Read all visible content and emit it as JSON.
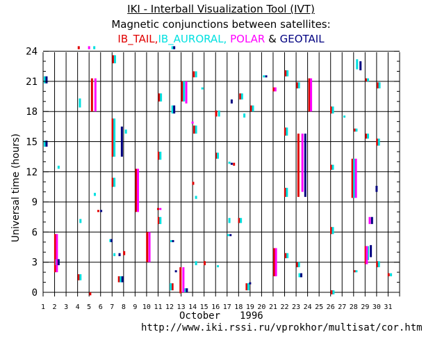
{
  "header": {
    "title": "IKI - Interball Visualization Tool (IVT)",
    "subtitle": "Magnetic conjunctions between satellites:",
    "legend": {
      "ib_tail": "IB_TAIL,",
      "ib_auroral": "IB_AURORAL,",
      "polar": "POLAR",
      "amp": "&",
      "geotail": "GEOTAIL"
    }
  },
  "footer": {
    "month": "October",
    "year": "1996",
    "url": "http://www.iki.rssi.ru/vprokhor/multisat/cor.htm"
  },
  "colors": {
    "IB_TAIL": "#e00000",
    "IB_AURORAL": "#00e0e0",
    "POLAR": "#ff00ff",
    "GEOTAIL": "#000080"
  },
  "chart_data": {
    "type": "scatter",
    "ylabel": "Universal time (hours)",
    "xlabel": "October 1996",
    "xlim": [
      1,
      32
    ],
    "ylim": [
      0,
      24
    ],
    "xticks": [
      "1",
      "2",
      "3",
      "4",
      "5",
      "6",
      "7",
      "8",
      "9",
      "10",
      "11",
      "12",
      "13",
      "14",
      "15",
      "16",
      "17",
      "18",
      "19",
      "20",
      "21",
      "22",
      "23",
      "24",
      "25",
      "26",
      "27",
      "28",
      "29",
      "30",
      "31"
    ],
    "yticks": [
      "0",
      "3",
      "6",
      "9",
      "12",
      "15",
      "18",
      "21",
      "24"
    ],
    "grid": true,
    "series": [
      {
        "name": "IB_TAIL",
        "intervals": [
          {
            "x": 2.05,
            "y0": 2.0,
            "y1": 5.8
          },
          {
            "x": 4.1,
            "y0": 24.2,
            "y1": 24.5
          },
          {
            "x": 4.1,
            "y0": 1.2,
            "y1": 1.8
          },
          {
            "x": 5.25,
            "y0": 18.0,
            "y1": 21.3
          },
          {
            "x": 5.1,
            "y0": -0.3,
            "y1": 0
          },
          {
            "x": 5.8,
            "y0": 8.0,
            "y1": 8.2
          },
          {
            "x": 7.05,
            "y0": 13.5,
            "y1": 17.3
          },
          {
            "x": 7.05,
            "y0": 10.5,
            "y1": 11.4
          },
          {
            "x": 7.1,
            "y0": 22.8,
            "y1": 23.6
          },
          {
            "x": 7.6,
            "y0": 1.0,
            "y1": 1.6
          },
          {
            "x": 8.05,
            "y0": 3.7,
            "y1": 4.1
          },
          {
            "x": 9.1,
            "y0": 8.0,
            "y1": 12.3
          },
          {
            "x": 10.05,
            "y0": 3.0,
            "y1": 6.0
          },
          {
            "x": 11.05,
            "y0": 6.8,
            "y1": 7.5
          },
          {
            "x": 11.05,
            "y0": 13.2,
            "y1": 14.0
          },
          {
            "x": 11.1,
            "y0": 19.0,
            "y1": 19.8
          },
          {
            "x": 11.0,
            "y0": 8.2,
            "y1": 8.4
          },
          {
            "x": 12.25,
            "y0": 0.2,
            "y1": 0.9
          },
          {
            "x": 12.95,
            "y0": -0.1,
            "y1": 2.5
          },
          {
            "x": 13.1,
            "y0": 19.0,
            "y1": 21.0
          },
          {
            "x": 14.15,
            "y0": 15.8,
            "y1": 16.6
          },
          {
            "x": 14.1,
            "y0": 21.4,
            "y1": 22.0
          },
          {
            "x": 14.05,
            "y0": 10.7,
            "y1": 11.0
          },
          {
            "x": 15.05,
            "y0": 2.7,
            "y1": 3.1
          },
          {
            "x": 16.05,
            "y0": 17.5,
            "y1": 18.1
          },
          {
            "x": 16.1,
            "y0": 13.3,
            "y1": 13.9
          },
          {
            "x": 17.6,
            "y0": 12.6,
            "y1": 12.9
          },
          {
            "x": 18.05,
            "y0": 6.9,
            "y1": 7.4
          },
          {
            "x": 18.15,
            "y0": 19.2,
            "y1": 19.8
          },
          {
            "x": 18.7,
            "y0": 0.2,
            "y1": 0.9
          },
          {
            "x": 19.1,
            "y0": 18.0,
            "y1": 18.6
          },
          {
            "x": 21.05,
            "y0": 20.0,
            "y1": 20.4
          },
          {
            "x": 21.1,
            "y0": 1.6,
            "y1": 4.4
          },
          {
            "x": 22.05,
            "y0": 9.5,
            "y1": 10.4
          },
          {
            "x": 22.05,
            "y0": 15.6,
            "y1": 16.4
          },
          {
            "x": 22.1,
            "y0": 3.4,
            "y1": 3.9
          },
          {
            "x": 22.1,
            "y0": 21.5,
            "y1": 22.1
          },
          {
            "x": 23.2,
            "y0": 9.5,
            "y1": 15.8
          },
          {
            "x": 23.1,
            "y0": 2.5,
            "y1": 3.0
          },
          {
            "x": 23.1,
            "y0": 20.3,
            "y1": 20.9
          },
          {
            "x": 24.15,
            "y0": 18.0,
            "y1": 21.3
          },
          {
            "x": 26.05,
            "y0": 5.8,
            "y1": 6.5
          },
          {
            "x": 26.05,
            "y0": 12.2,
            "y1": 12.7
          },
          {
            "x": 26.05,
            "y0": 17.8,
            "y1": 18.5
          },
          {
            "x": 26.1,
            "y0": -0.2,
            "y1": 0.2
          },
          {
            "x": 27.9,
            "y0": 9.4,
            "y1": 13.3
          },
          {
            "x": 28.1,
            "y0": 16.0,
            "y1": 16.3
          },
          {
            "x": 28.1,
            "y0": 2.0,
            "y1": 2.2
          },
          {
            "x": 29.05,
            "y0": 2.8,
            "y1": 4.6
          },
          {
            "x": 29.1,
            "y0": 15.3,
            "y1": 15.8
          },
          {
            "x": 29.1,
            "y0": 21.0,
            "y1": 21.3
          },
          {
            "x": 30.05,
            "y0": 2.5,
            "y1": 3.1
          },
          {
            "x": 30.05,
            "y0": 14.6,
            "y1": 15.3
          },
          {
            "x": 30.1,
            "y0": 20.3,
            "y1": 20.9
          },
          {
            "x": 31.05,
            "y0": 1.6,
            "y1": 1.9
          }
        ]
      },
      {
        "name": "IB_AURORAL",
        "intervals": [
          {
            "x": 1.15,
            "y0": 20.8,
            "y1": 21.5
          },
          {
            "x": 1.15,
            "y0": 14.5,
            "y1": 15.1
          },
          {
            "x": 2.35,
            "y0": 12.3,
            "y1": 12.6
          },
          {
            "x": 2.15,
            "y0": 2.7,
            "y1": 3.3
          },
          {
            "x": 4.2,
            "y0": 18.4,
            "y1": 19.3
          },
          {
            "x": 4.25,
            "y0": 1.2,
            "y1": 1.8
          },
          {
            "x": 4.25,
            "y0": 6.9,
            "y1": 7.3
          },
          {
            "x": 5.45,
            "y0": 24.2,
            "y1": 24.5
          },
          {
            "x": 5.5,
            "y0": 9.6,
            "y1": 9.9
          },
          {
            "x": 6.85,
            "y0": 5.0,
            "y1": 5.3
          },
          {
            "x": 7.2,
            "y0": 13.5,
            "y1": 17.3
          },
          {
            "x": 7.2,
            "y0": 10.5,
            "y1": 11.4
          },
          {
            "x": 7.25,
            "y0": 22.8,
            "y1": 23.6
          },
          {
            "x": 7.2,
            "y0": 3.6,
            "y1": 3.9
          },
          {
            "x": 7.75,
            "y0": 1.0,
            "y1": 1.6
          },
          {
            "x": 8.2,
            "y0": 15.8,
            "y1": 16.2
          },
          {
            "x": 11.2,
            "y0": 6.8,
            "y1": 7.5
          },
          {
            "x": 11.2,
            "y0": 13.2,
            "y1": 14.0
          },
          {
            "x": 11.25,
            "y0": 19.0,
            "y1": 19.8
          },
          {
            "x": 12.25,
            "y0": 17.8,
            "y1": 18.6
          },
          {
            "x": 12.25,
            "y0": 24.2,
            "y1": 24.5
          },
          {
            "x": 12.15,
            "y0": 5.0,
            "y1": 5.2
          },
          {
            "x": 12.1,
            "y0": 0.2,
            "y1": 0.9
          },
          {
            "x": 13.25,
            "y0": 19.0,
            "y1": 21.0
          },
          {
            "x": 13.35,
            "y0": 0.0,
            "y1": 0.4
          },
          {
            "x": 14.3,
            "y0": 15.8,
            "y1": 16.6
          },
          {
            "x": 14.3,
            "y0": 21.4,
            "y1": 22.0
          },
          {
            "x": 14.3,
            "y0": 9.3,
            "y1": 9.6
          },
          {
            "x": 14.3,
            "y0": 2.7,
            "y1": 3.1
          },
          {
            "x": 14.85,
            "y0": 20.2,
            "y1": 20.4
          },
          {
            "x": 16.2,
            "y0": 13.3,
            "y1": 13.9
          },
          {
            "x": 16.3,
            "y0": 17.5,
            "y1": 18.1
          },
          {
            "x": 16.2,
            "y0": 2.5,
            "y1": 2.7
          },
          {
            "x": 17.2,
            "y0": 12.8,
            "y1": 13.0
          },
          {
            "x": 17.1,
            "y0": 5.6,
            "y1": 5.8
          },
          {
            "x": 17.2,
            "y0": 6.9,
            "y1": 7.4
          },
          {
            "x": 18.2,
            "y0": 6.9,
            "y1": 7.4
          },
          {
            "x": 18.3,
            "y0": 19.2,
            "y1": 19.8
          },
          {
            "x": 18.5,
            "y0": 17.4,
            "y1": 17.8
          },
          {
            "x": 18.85,
            "y0": 0.2,
            "y1": 0.9
          },
          {
            "x": 19.25,
            "y0": 18.0,
            "y1": 18.6
          },
          {
            "x": 20.2,
            "y0": 21.4,
            "y1": 21.6
          },
          {
            "x": 22.2,
            "y0": 9.5,
            "y1": 10.4
          },
          {
            "x": 22.2,
            "y0": 15.6,
            "y1": 16.4
          },
          {
            "x": 22.25,
            "y0": 3.4,
            "y1": 3.9
          },
          {
            "x": 22.25,
            "y0": 21.5,
            "y1": 22.1
          },
          {
            "x": 23.25,
            "y0": 20.3,
            "y1": 20.9
          },
          {
            "x": 23.25,
            "y0": 2.5,
            "y1": 3.0
          },
          {
            "x": 23.3,
            "y0": 1.5,
            "y1": 1.9
          },
          {
            "x": 26.2,
            "y0": 5.8,
            "y1": 6.5
          },
          {
            "x": 26.2,
            "y0": 12.2,
            "y1": 12.7
          },
          {
            "x": 26.2,
            "y0": 17.8,
            "y1": 18.5
          },
          {
            "x": 26.25,
            "y0": -0.2,
            "y1": 0.2
          },
          {
            "x": 27.2,
            "y0": 17.4,
            "y1": 17.6
          },
          {
            "x": 28.05,
            "y0": 9.4,
            "y1": 13.3
          },
          {
            "x": 28.25,
            "y0": 16.0,
            "y1": 16.3
          },
          {
            "x": 28.25,
            "y0": 2.0,
            "y1": 2.2
          },
          {
            "x": 28.3,
            "y0": 22.2,
            "y1": 23.2
          },
          {
            "x": 29.25,
            "y0": 15.3,
            "y1": 15.8
          },
          {
            "x": 29.25,
            "y0": 21.0,
            "y1": 21.3
          },
          {
            "x": 29.25,
            "y0": 3.2,
            "y1": 4.6
          },
          {
            "x": 30.2,
            "y0": 2.5,
            "y1": 3.1
          },
          {
            "x": 30.2,
            "y0": 14.6,
            "y1": 15.3
          },
          {
            "x": 30.25,
            "y0": 20.3,
            "y1": 20.9
          },
          {
            "x": 31.25,
            "y0": 1.6,
            "y1": 1.9
          }
        ]
      },
      {
        "name": "POLAR",
        "intervals": [
          {
            "x": 2.2,
            "y0": 2.0,
            "y1": 5.8
          },
          {
            "x": 5.0,
            "y0": 24.2,
            "y1": 24.5
          },
          {
            "x": 5.55,
            "y0": 18.0,
            "y1": 21.3
          },
          {
            "x": 9.25,
            "y0": 8.0,
            "y1": 12.3
          },
          {
            "x": 10.25,
            "y0": 3.0,
            "y1": 6.0
          },
          {
            "x": 11.2,
            "y0": 8.2,
            "y1": 8.4
          },
          {
            "x": 13.2,
            "y0": 0.0,
            "y1": 2.5
          },
          {
            "x": 13.45,
            "y0": 18.8,
            "y1": 21.0
          },
          {
            "x": 14.0,
            "y0": 16.8,
            "y1": 17.0
          },
          {
            "x": 21.2,
            "y0": 20.0,
            "y1": 20.4
          },
          {
            "x": 21.25,
            "y0": 1.6,
            "y1": 4.4
          },
          {
            "x": 23.55,
            "y0": 10.0,
            "y1": 15.8
          },
          {
            "x": 24.3,
            "y0": 18.0,
            "y1": 21.3
          },
          {
            "x": 28.2,
            "y0": 9.4,
            "y1": 13.3
          },
          {
            "x": 29.4,
            "y0": 6.8,
            "y1": 7.5
          },
          {
            "x": 29.15,
            "y0": 2.8,
            "y1": 4.6
          }
        ]
      },
      {
        "name": "GEOTAIL",
        "intervals": [
          {
            "x": 1.3,
            "y0": 20.8,
            "y1": 21.5
          },
          {
            "x": 1.3,
            "y0": 14.5,
            "y1": 15.1
          },
          {
            "x": 2.35,
            "y0": 2.7,
            "y1": 3.3
          },
          {
            "x": 6.05,
            "y0": 8.0,
            "y1": 8.2
          },
          {
            "x": 6.95,
            "y0": 5.0,
            "y1": 5.3
          },
          {
            "x": 7.85,
            "y0": 13.5,
            "y1": 16.5
          },
          {
            "x": 7.65,
            "y0": 3.6,
            "y1": 3.9
          },
          {
            "x": 7.9,
            "y0": 1.0,
            "y1": 1.6
          },
          {
            "x": 12.4,
            "y0": 17.8,
            "y1": 18.6
          },
          {
            "x": 12.4,
            "y0": 24.2,
            "y1": 24.5
          },
          {
            "x": 12.3,
            "y0": 5.0,
            "y1": 5.2
          },
          {
            "x": 12.55,
            "y0": 2.0,
            "y1": 2.2
          },
          {
            "x": 13.5,
            "y0": 0.0,
            "y1": 0.4
          },
          {
            "x": 17.4,
            "y0": 12.7,
            "y1": 12.9
          },
          {
            "x": 17.3,
            "y0": 5.6,
            "y1": 5.8
          },
          {
            "x": 17.4,
            "y0": 18.8,
            "y1": 19.2
          },
          {
            "x": 19.0,
            "y0": 0.8,
            "y1": 1.0
          },
          {
            "x": 20.4,
            "y0": 21.4,
            "y1": 21.6
          },
          {
            "x": 23.8,
            "y0": 9.5,
            "y1": 15.8
          },
          {
            "x": 23.45,
            "y0": 1.5,
            "y1": 1.9
          },
          {
            "x": 28.6,
            "y0": 22.1,
            "y1": 23.0
          },
          {
            "x": 29.6,
            "y0": 6.8,
            "y1": 7.5
          },
          {
            "x": 29.5,
            "y0": 3.5,
            "y1": 4.7
          },
          {
            "x": 30.0,
            "y0": 10.0,
            "y1": 10.6
          }
        ]
      }
    ]
  }
}
